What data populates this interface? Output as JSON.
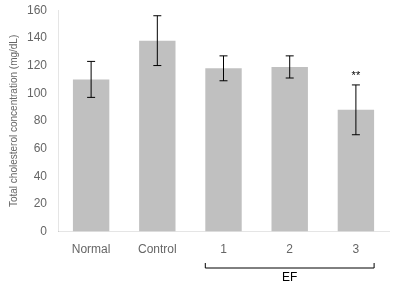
{
  "chart_data": {
    "type": "bar",
    "categories": [
      "Normal",
      "Control",
      "1",
      "2",
      "3"
    ],
    "values": [
      110,
      138,
      118,
      119,
      88
    ],
    "errors": [
      13,
      18,
      9,
      8,
      18
    ],
    "color": "#c0c0c0",
    "ylabel": "Total cholesterol concentration (mg/dL)",
    "ylim": [
      0,
      160
    ],
    "yticks": [
      0,
      20,
      40,
      60,
      80,
      100,
      120,
      140,
      160
    ],
    "grid": false,
    "annotations": [
      {
        "text": "**",
        "category": "3"
      },
      {
        "text": "EF",
        "bracket": [
          "1",
          "3"
        ]
      }
    ]
  }
}
